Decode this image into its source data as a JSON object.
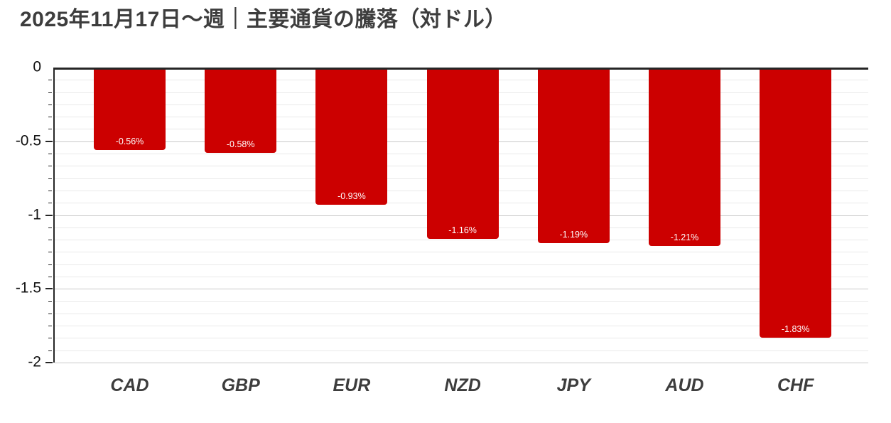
{
  "title": "2025年11月17日～週｜主要通貨の騰落（対ドル）",
  "chart_data": {
    "type": "bar",
    "title": "2025年11月17日～週｜主要通貨の騰落（対ドル）",
    "categories": [
      "CAD",
      "GBP",
      "EUR",
      "NZD",
      "JPY",
      "AUD",
      "CHF"
    ],
    "values": [
      -0.56,
      -0.58,
      -0.93,
      -1.16,
      -1.19,
      -1.21,
      -1.83
    ],
    "value_labels": [
      "-0.56%",
      "-0.58%",
      "-0.93%",
      "-1.16%",
      "-1.19%",
      "-1.21%",
      "-1.83%"
    ],
    "xlabel": "",
    "ylabel": "",
    "ylim": [
      -2,
      0
    ],
    "y_tick_labels": [
      "0",
      "-0.5",
      "-1",
      "-1.5",
      "-2"
    ],
    "y_ticks": [
      0,
      -0.5,
      -1,
      -1.5,
      -2
    ],
    "minor_divisions_per_major": 6,
    "grid": true,
    "legend": false,
    "bar_color": "#CC0000",
    "value_label_color": "#FFFFFF"
  },
  "colors": {
    "background": "#FFFFFF",
    "bar": "#CC0000",
    "axis": "#262626",
    "grid_minor": "#E9E9E9",
    "grid_major": "#C9C9C9",
    "title_text": "#3D3D3D",
    "category_text": "#3D3D3D",
    "tick_label_text": "#111111",
    "value_label_text": "#FFFFFF"
  }
}
